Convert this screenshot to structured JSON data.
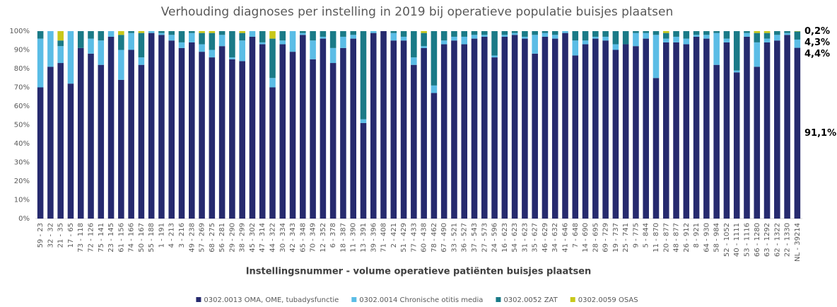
{
  "chart_data": {
    "type": "stacked_bar",
    "title": "Verhouding diagnoses per instelling in 2019 bij operatieve populatie buisjes plaatsen",
    "x_label": "Instellingsnummer - volume operatieve patiënten buisjes plaatsen",
    "categories": [
      "59 - 23",
      "32 - 32",
      "21 - 35",
      "17 - 65",
      "73 - 118",
      "72 - 126",
      "75 - 141",
      "23 - 145",
      "61 - 156",
      "74 - 166",
      "50 - 167",
      "55 - 188",
      "1 - 191",
      "4 - 213",
      "3 - 216",
      "49 - 238",
      "57 - 269",
      "68 - 275",
      "56 - 281",
      "29 - 290",
      "38 - 299",
      "45 - 302",
      "47 - 314",
      "44 - 322",
      "30 - 334",
      "42 - 343",
      "65 - 348",
      "70 - 349",
      "12 - 352",
      "6 - 378",
      "18 - 387",
      "11 - 390",
      "13 - 391",
      "39 - 396",
      "71 - 408",
      "2 - 421",
      "51 - 429",
      "77 - 433",
      "60 - 438",
      "78 - 462",
      "67 - 490",
      "33 - 521",
      "36 - 527",
      "37 - 543",
      "27 - 573",
      "24 - 596",
      "16 - 623",
      "54 - 623",
      "31 - 623",
      "35 - 627",
      "46 - 629",
      "34 - 632",
      "41 - 646",
      "7 - 648",
      "14 - 690",
      "28 - 695",
      "69 - 729",
      "19 - 737",
      "25 - 741",
      "9 - 775",
      "5 - 844",
      "11 - 870",
      "20 - 877",
      "48 - 877",
      "26 - 912",
      "8 - 921",
      "64 - 930",
      "58 - 984",
      "52 - 1052",
      "40 - 1111",
      "53 - 1116",
      "66 - 1280",
      "63 - 1292",
      "62 - 1322",
      "22 - 1330",
      "NL - 39214"
    ],
    "series": [
      {
        "name": "0302.0013 OMA, OME, tubadysfunctie",
        "color": "#262a6e",
        "values": [
          70,
          81,
          83,
          72,
          91,
          88,
          82,
          97,
          74,
          90,
          82,
          99,
          98,
          95,
          91,
          94,
          89,
          86,
          92,
          85,
          84,
          97,
          93,
          70,
          93,
          89,
          98,
          85,
          96,
          83,
          91,
          96,
          51,
          99,
          100,
          95,
          95,
          82,
          91,
          67,
          93,
          95,
          93,
          96,
          97,
          86,
          97,
          98,
          96,
          88,
          97,
          96,
          99,
          87,
          93,
          96,
          95,
          90,
          93,
          92,
          96,
          75,
          94,
          94,
          93,
          97,
          96,
          82,
          94,
          78,
          97,
          81,
          94,
          95,
          98,
          91.1
        ],
        "value_labels": [
          null,
          null,
          null,
          null,
          null,
          null,
          null,
          null,
          null,
          null,
          null,
          null,
          null,
          null,
          null,
          null,
          null,
          null,
          null,
          null,
          null,
          null,
          null,
          null,
          null,
          null,
          null,
          null,
          null,
          null,
          null,
          null,
          null,
          null,
          null,
          null,
          null,
          null,
          null,
          null,
          null,
          null,
          null,
          null,
          null,
          null,
          null,
          null,
          null,
          null,
          null,
          null,
          null,
          null,
          null,
          null,
          null,
          null,
          null,
          null,
          null,
          null,
          null,
          null,
          null,
          null,
          null,
          null,
          null,
          null,
          null,
          null,
          null,
          null,
          null,
          "91,1%"
        ]
      },
      {
        "name": "0302.0014 Chronische otitis media",
        "color": "#5bbde6",
        "values": [
          26,
          19,
          9,
          28,
          0,
          8,
          13,
          3,
          16,
          9,
          4,
          1,
          1,
          3,
          3,
          5,
          4,
          4,
          6,
          1,
          11,
          3,
          1,
          5,
          2,
          11,
          1,
          10,
          1,
          8,
          6,
          2,
          2,
          1,
          0,
          4,
          2,
          4,
          1,
          4,
          2,
          2,
          4,
          2,
          1,
          1,
          1,
          1,
          1,
          10,
          2,
          2,
          1,
          8,
          2,
          1,
          2,
          3,
          0,
          7,
          3,
          23,
          2,
          3,
          3,
          1,
          2,
          17,
          2,
          1,
          2,
          13,
          2,
          3,
          1,
          4.4
        ],
        "value_labels": [
          null,
          null,
          null,
          null,
          null,
          null,
          null,
          null,
          null,
          null,
          null,
          null,
          null,
          null,
          null,
          null,
          null,
          null,
          null,
          null,
          null,
          null,
          null,
          null,
          null,
          null,
          null,
          null,
          null,
          null,
          null,
          null,
          null,
          null,
          null,
          null,
          null,
          null,
          null,
          null,
          null,
          null,
          null,
          null,
          null,
          null,
          null,
          null,
          null,
          null,
          null,
          null,
          null,
          null,
          null,
          null,
          null,
          null,
          null,
          null,
          null,
          null,
          null,
          null,
          null,
          null,
          null,
          null,
          null,
          null,
          null,
          null,
          null,
          null,
          null,
          "4,4%"
        ]
      },
      {
        "name": "0302.0052 ZAT",
        "color": "#1a7a87",
        "values": [
          4,
          0,
          3,
          0,
          9,
          4,
          5,
          0,
          8,
          1,
          13,
          0,
          1,
          2,
          6,
          1,
          6,
          9,
          2,
          14,
          4,
          0,
          6,
          21,
          5,
          0,
          1,
          5,
          3,
          9,
          3,
          2,
          47,
          0,
          0,
          1,
          3,
          14,
          7,
          29,
          5,
          3,
          3,
          2,
          2,
          13,
          2,
          1,
          3,
          2,
          1,
          2,
          0,
          5,
          5,
          3,
          3,
          7,
          7,
          1,
          1,
          2,
          3,
          3,
          4,
          2,
          2,
          1,
          4,
          21,
          1,
          5,
          3,
          2,
          1,
          4.3
        ],
        "value_labels": [
          null,
          null,
          null,
          null,
          null,
          null,
          null,
          null,
          null,
          null,
          null,
          null,
          null,
          null,
          null,
          null,
          null,
          null,
          null,
          null,
          null,
          null,
          null,
          null,
          null,
          null,
          null,
          null,
          null,
          null,
          null,
          null,
          null,
          null,
          null,
          null,
          null,
          null,
          null,
          null,
          null,
          null,
          null,
          null,
          null,
          null,
          null,
          null,
          null,
          null,
          null,
          null,
          null,
          null,
          null,
          null,
          null,
          null,
          null,
          null,
          null,
          null,
          null,
          null,
          null,
          null,
          null,
          null,
          null,
          null,
          null,
          null,
          null,
          null,
          null,
          "4,3%"
        ]
      },
      {
        "name": "0302.0059 OSAS",
        "color": "#c8c81a",
        "values": [
          0,
          0,
          5,
          0,
          0,
          0,
          0,
          0,
          2,
          0,
          1,
          0,
          0,
          0,
          0,
          0,
          1,
          1,
          0,
          0,
          1,
          0,
          0,
          4,
          0,
          0,
          0,
          0,
          0,
          0,
          0,
          0,
          0,
          0,
          0,
          0,
          0,
          0,
          1,
          0,
          0,
          0,
          0,
          0,
          0,
          0,
          0,
          0,
          0,
          0,
          0,
          0,
          0,
          0,
          0,
          0,
          0,
          0,
          0,
          0,
          0,
          0,
          1,
          0,
          0,
          0,
          0,
          0,
          0,
          0,
          0,
          1,
          1,
          0,
          0,
          0.2
        ],
        "value_labels": [
          null,
          null,
          null,
          null,
          null,
          null,
          null,
          null,
          null,
          null,
          null,
          null,
          null,
          null,
          null,
          null,
          null,
          null,
          null,
          null,
          null,
          null,
          null,
          null,
          null,
          null,
          null,
          null,
          null,
          null,
          null,
          null,
          null,
          null,
          null,
          null,
          null,
          null,
          null,
          null,
          null,
          null,
          null,
          null,
          null,
          null,
          null,
          null,
          null,
          null,
          null,
          null,
          null,
          null,
          null,
          null,
          null,
          null,
          null,
          null,
          null,
          null,
          null,
          null,
          null,
          null,
          null,
          null,
          null,
          null,
          null,
          null,
          null,
          null,
          null,
          "0,2%"
        ]
      }
    ],
    "ylim": [
      0,
      100
    ],
    "yticks": [
      {
        "value": 0,
        "label": "0%"
      },
      {
        "value": 10,
        "label": "10%"
      },
      {
        "value": 20,
        "label": "20%"
      },
      {
        "value": 30,
        "label": "30%"
      },
      {
        "value": 40,
        "label": "40%"
      },
      {
        "value": 50,
        "label": "50%"
      },
      {
        "value": 60,
        "label": "60%"
      },
      {
        "value": 70,
        "label": "70%"
      },
      {
        "value": 80,
        "label": "80%"
      },
      {
        "value": 90,
        "label": "90%"
      },
      {
        "value": 100,
        "label": "100%"
      }
    ],
    "grid": false,
    "legend": "bottom"
  }
}
